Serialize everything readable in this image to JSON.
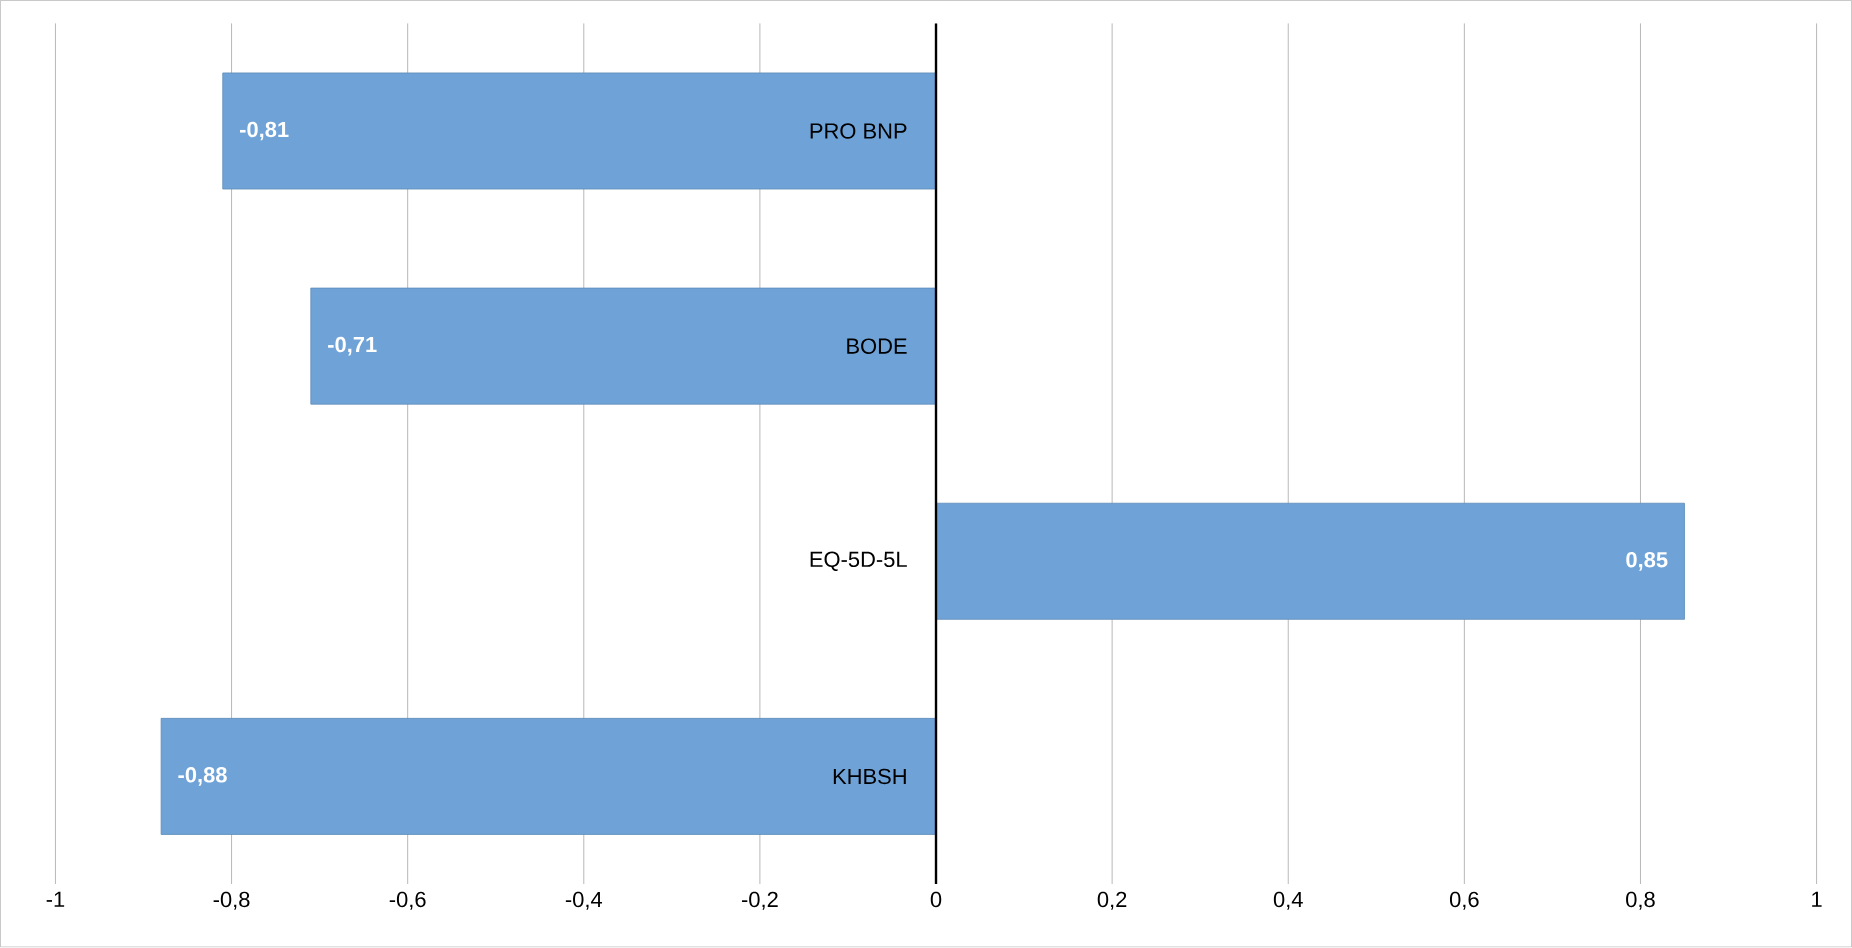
{
  "chart_data": {
    "type": "bar",
    "orientation": "horizontal",
    "categories": [
      "PRO BNP",
      "BODE",
      "EQ-5D-5L",
      "KHBSH"
    ],
    "values": [
      -0.81,
      -0.71,
      0.85,
      -0.88
    ],
    "value_labels": [
      "-0,81",
      "-0,71",
      "0,85",
      "-0,88"
    ],
    "color": "#6fa3d8",
    "xlim": [
      -1,
      1
    ],
    "xticks": [
      {
        "value": -1,
        "label": "-1"
      },
      {
        "value": -0.8,
        "label": "-0,8"
      },
      {
        "value": -0.6,
        "label": "-0,6"
      },
      {
        "value": -0.4,
        "label": "-0,4"
      },
      {
        "value": -0.2,
        "label": "-0,2"
      },
      {
        "value": 0,
        "label": "0"
      },
      {
        "value": 0.2,
        "label": "0,2"
      },
      {
        "value": 0.4,
        "label": "0,4"
      },
      {
        "value": 0.6,
        "label": "0,6"
      },
      {
        "value": 0.8,
        "label": "0,8"
      },
      {
        "value": 1,
        "label": "1"
      }
    ],
    "grid": "x"
  }
}
